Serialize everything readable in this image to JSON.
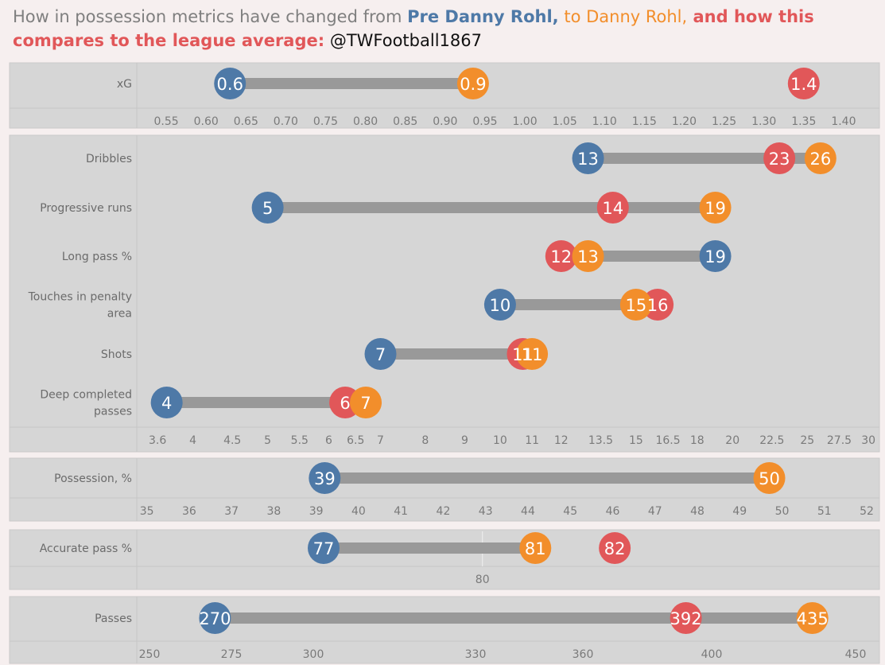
{
  "title": {
    "part1": "How in possession metrics have changed from ",
    "part2": "Pre Danny Rohl,",
    "part3": " to Danny Rohl,",
    "part4": " and how this compares to the league average:",
    "part5": " @TWFootball1867"
  },
  "colors": {
    "pre": "#4e79a7",
    "rohl": "#f28e2b",
    "league": "#e15759",
    "bar": "#999999",
    "panel": "#d6d6d6"
  },
  "chart_data": [
    {
      "type": "dumbbell",
      "scale": "linear",
      "xlim": [
        0.515,
        1.445
      ],
      "ticks": [
        "0.55",
        "0.60",
        "0.65",
        "0.70",
        "0.75",
        "0.80",
        "0.85",
        "0.90",
        "0.95",
        "1.00",
        "1.05",
        "1.10",
        "1.15",
        "1.20",
        "1.25",
        "1.30",
        "1.35",
        "1.40"
      ],
      "rows": [
        {
          "label": "xG",
          "pre": 0.63,
          "pre_label": "0.6",
          "rohl": 0.935,
          "rohl_label": "0.9",
          "league": 1.35,
          "league_label": "1.4"
        }
      ]
    },
    {
      "type": "dumbbell",
      "scale": "log",
      "xlim": [
        3.4,
        31
      ],
      "ticks": [
        "3.6",
        "4",
        "4.5",
        "5",
        "5.5",
        "6",
        "6.5",
        "7",
        "8",
        "9",
        "10",
        "11",
        "12",
        "13.5",
        "15",
        "16.5",
        "18",
        "20",
        "22.5",
        "25",
        "27.5",
        "30"
      ],
      "rows": [
        {
          "label": "Dribbles",
          "pre": 13,
          "pre_label": "13",
          "rohl": 26,
          "rohl_label": "26",
          "league": 23,
          "league_label": "23"
        },
        {
          "label": "Progressive runs",
          "pre": 5,
          "pre_label": "5",
          "rohl": 19,
          "rohl_label": "19",
          "league": 14,
          "league_label": "14"
        },
        {
          "label": "Long pass %",
          "pre": 19,
          "pre_label": "19",
          "rohl": 13,
          "rohl_label": "13",
          "league": 12,
          "league_label": "12"
        },
        {
          "label": [
            "Touches in penalty",
            "area"
          ],
          "pre": 10,
          "pre_label": "10",
          "rohl": 15,
          "rohl_label": "15",
          "league": 16,
          "league_label": "16"
        },
        {
          "label": "Shots",
          "pre": 7,
          "pre_label": "7",
          "rohl": 11,
          "rohl_label": "11",
          "league": 10.7,
          "league_label": "11"
        },
        {
          "label": [
            "Deep completed",
            "passes"
          ],
          "pre": 3.7,
          "pre_label": "4",
          "rohl": 6.7,
          "rohl_label": "7",
          "league": 6.3,
          "league_label": "6"
        }
      ]
    },
    {
      "type": "dumbbell",
      "scale": "linear",
      "xlim": [
        34.8,
        52.3
      ],
      "ticks": [
        "35",
        "36",
        "37",
        "38",
        "39",
        "40",
        "41",
        "42",
        "43",
        "44",
        "45",
        "46",
        "47",
        "48",
        "49",
        "50",
        "51",
        "52"
      ],
      "rows": [
        {
          "label": "Possession, %",
          "pre": 39.2,
          "pre_label": "39",
          "rohl": 49.7,
          "rohl_label": "50"
        }
      ]
    },
    {
      "type": "dumbbell",
      "scale": "linear",
      "xlim": [
        73.5,
        87.5
      ],
      "ticks": [
        "80"
      ],
      "reference": 80,
      "rows": [
        {
          "label": "Accurate pass %",
          "pre": 77,
          "pre_label": "77",
          "rohl": 81,
          "rohl_label": "81",
          "league": 82.5,
          "league_label": "82"
        }
      ]
    },
    {
      "type": "dumbbell",
      "scale": "linear",
      "xlim": [
        248,
        453
      ],
      "ticks": [
        "250",
        "275",
        "300",
        "330",
        "360",
        "400",
        "450"
      ],
      "tick_values": [
        250,
        275,
        300,
        330,
        360,
        400,
        450
      ],
      "tick_positions_nonlinear": true,
      "rows": [
        {
          "label": "Passes",
          "pre": 270,
          "pre_label": "270",
          "rohl": 435,
          "rohl_label": "435",
          "league": 392,
          "league_label": "392"
        }
      ]
    }
  ]
}
